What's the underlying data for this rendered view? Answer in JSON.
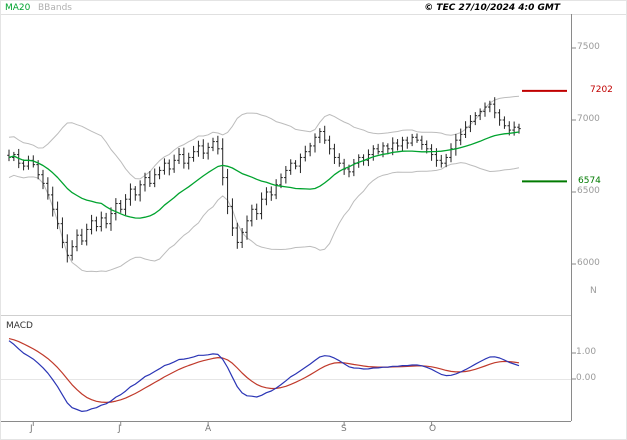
{
  "header": {
    "copyright": "© TEC 27/10/2024 4:0 GMT"
  },
  "chart_data": {
    "type": "candlestick",
    "title": "",
    "x_axis": {
      "tick_labels": [
        "J",
        "J",
        "A",
        "S",
        "O"
      ],
      "next_tick_label": "N",
      "month_start_indices": [
        5,
        23,
        41,
        69,
        87
      ]
    },
    "price_panel": {
      "ylim": [
        5900,
        7600
      ],
      "y_tick_values": [
        7500,
        7000,
        6500,
        6000
      ],
      "y_tick_labels": [
        "7500",
        "7000",
        "6500",
        "6000"
      ],
      "close": [
        6740,
        6760,
        6700,
        6680,
        6720,
        6690,
        6620,
        6560,
        6480,
        6380,
        6280,
        6150,
        6060,
        6120,
        6200,
        6160,
        6240,
        6300,
        6260,
        6320,
        6280,
        6350,
        6420,
        6380,
        6450,
        6520,
        6480,
        6550,
        6600,
        6560,
        6620,
        6650,
        6700,
        6660,
        6720,
        6760,
        6700,
        6740,
        6780,
        6820,
        6770,
        6810,
        6850,
        6800,
        6600,
        6400,
        6250,
        6150,
        6220,
        6300,
        6380,
        6350,
        6450,
        6500,
        6480,
        6550,
        6600,
        6650,
        6700,
        6680,
        6740,
        6780,
        6820,
        6880,
        6920,
        6860,
        6800,
        6740,
        6700,
        6660,
        6640,
        6700,
        6740,
        6720,
        6760,
        6800,
        6780,
        6820,
        6800,
        6840,
        6820,
        6860,
        6840,
        6880,
        6860,
        6830,
        6800,
        6760,
        6720,
        6700,
        6740,
        6800,
        6860,
        6900,
        6950,
        6990,
        7030,
        7060,
        7090,
        7110,
        7050,
        7000,
        6960,
        6930,
        6950,
        6940
      ],
      "indicators": {
        "ma20": {
          "label": "MA20",
          "period": 20,
          "color": "#00a32e"
        },
        "bollinger": {
          "label": "BBands",
          "period": 20,
          "stddev": 2,
          "color": "#bcbcbc"
        }
      },
      "levels": {
        "resistance": {
          "value": 7202,
          "label": "7202",
          "color": "#c00000"
        },
        "support": {
          "value": 6574,
          "label": "6574",
          "color": "#007a00"
        }
      }
    },
    "macd_panel": {
      "label": "MACD",
      "fast": 12,
      "slow": 26,
      "signal": 9,
      "y_tick_values": [
        1.0,
        0.0
      ],
      "y_tick_labels": [
        "1.00",
        "0.00"
      ],
      "macd_color": "#2b35b5",
      "signal_color": "#c03a2b"
    },
    "bar_color": "#222222"
  }
}
